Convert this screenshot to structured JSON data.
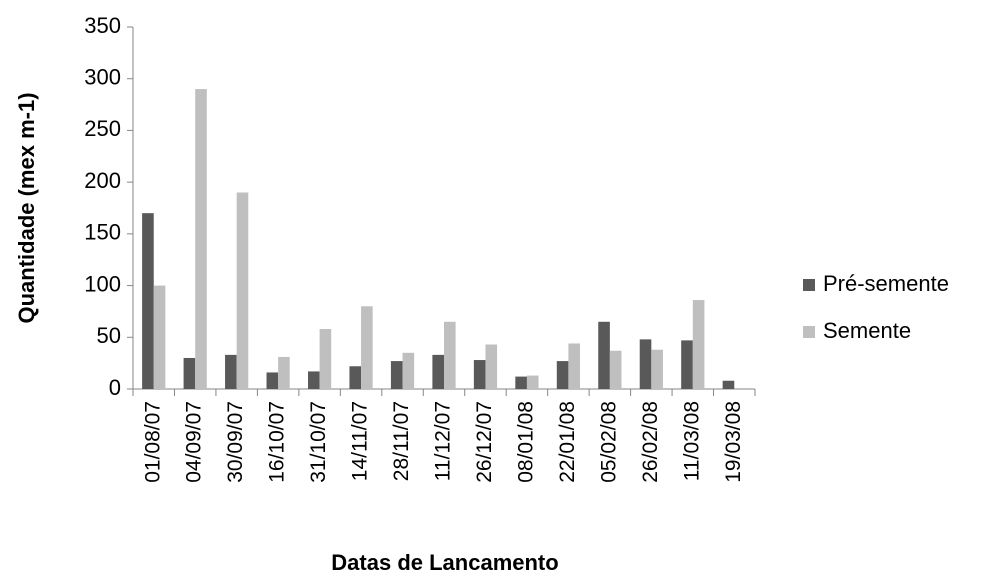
{
  "chart_data": {
    "type": "bar",
    "y_label": "Quantidade (mex m-1)",
    "x_label": "Datas de Lancamento",
    "categories": [
      "01/08/07",
      "04/09/07",
      "30/09/07",
      "16/10/07",
      "31/10/07",
      "14/11/07",
      "28/11/07",
      "11/12/07",
      "26/12/07",
      "08/01/08",
      "22/01/08",
      "05/02/08",
      "26/02/08",
      "11/03/08",
      "19/03/08"
    ],
    "series": [
      {
        "name": "Pré-semente",
        "color": "#595959",
        "values": [
          170,
          30,
          33,
          16,
          17,
          22,
          27,
          33,
          28,
          12,
          27,
          65,
          48,
          47,
          8
        ]
      },
      {
        "name": "Semente",
        "color": "#bfbfbf",
        "values": [
          100,
          290,
          190,
          31,
          58,
          80,
          35,
          65,
          43,
          13,
          44,
          37,
          38,
          86,
          null
        ]
      }
    ],
    "ylim": [
      0,
      350
    ],
    "yticks": [
      0,
      50,
      100,
      150,
      200,
      250,
      300,
      350
    ],
    "grid": false,
    "legend": "right"
  }
}
